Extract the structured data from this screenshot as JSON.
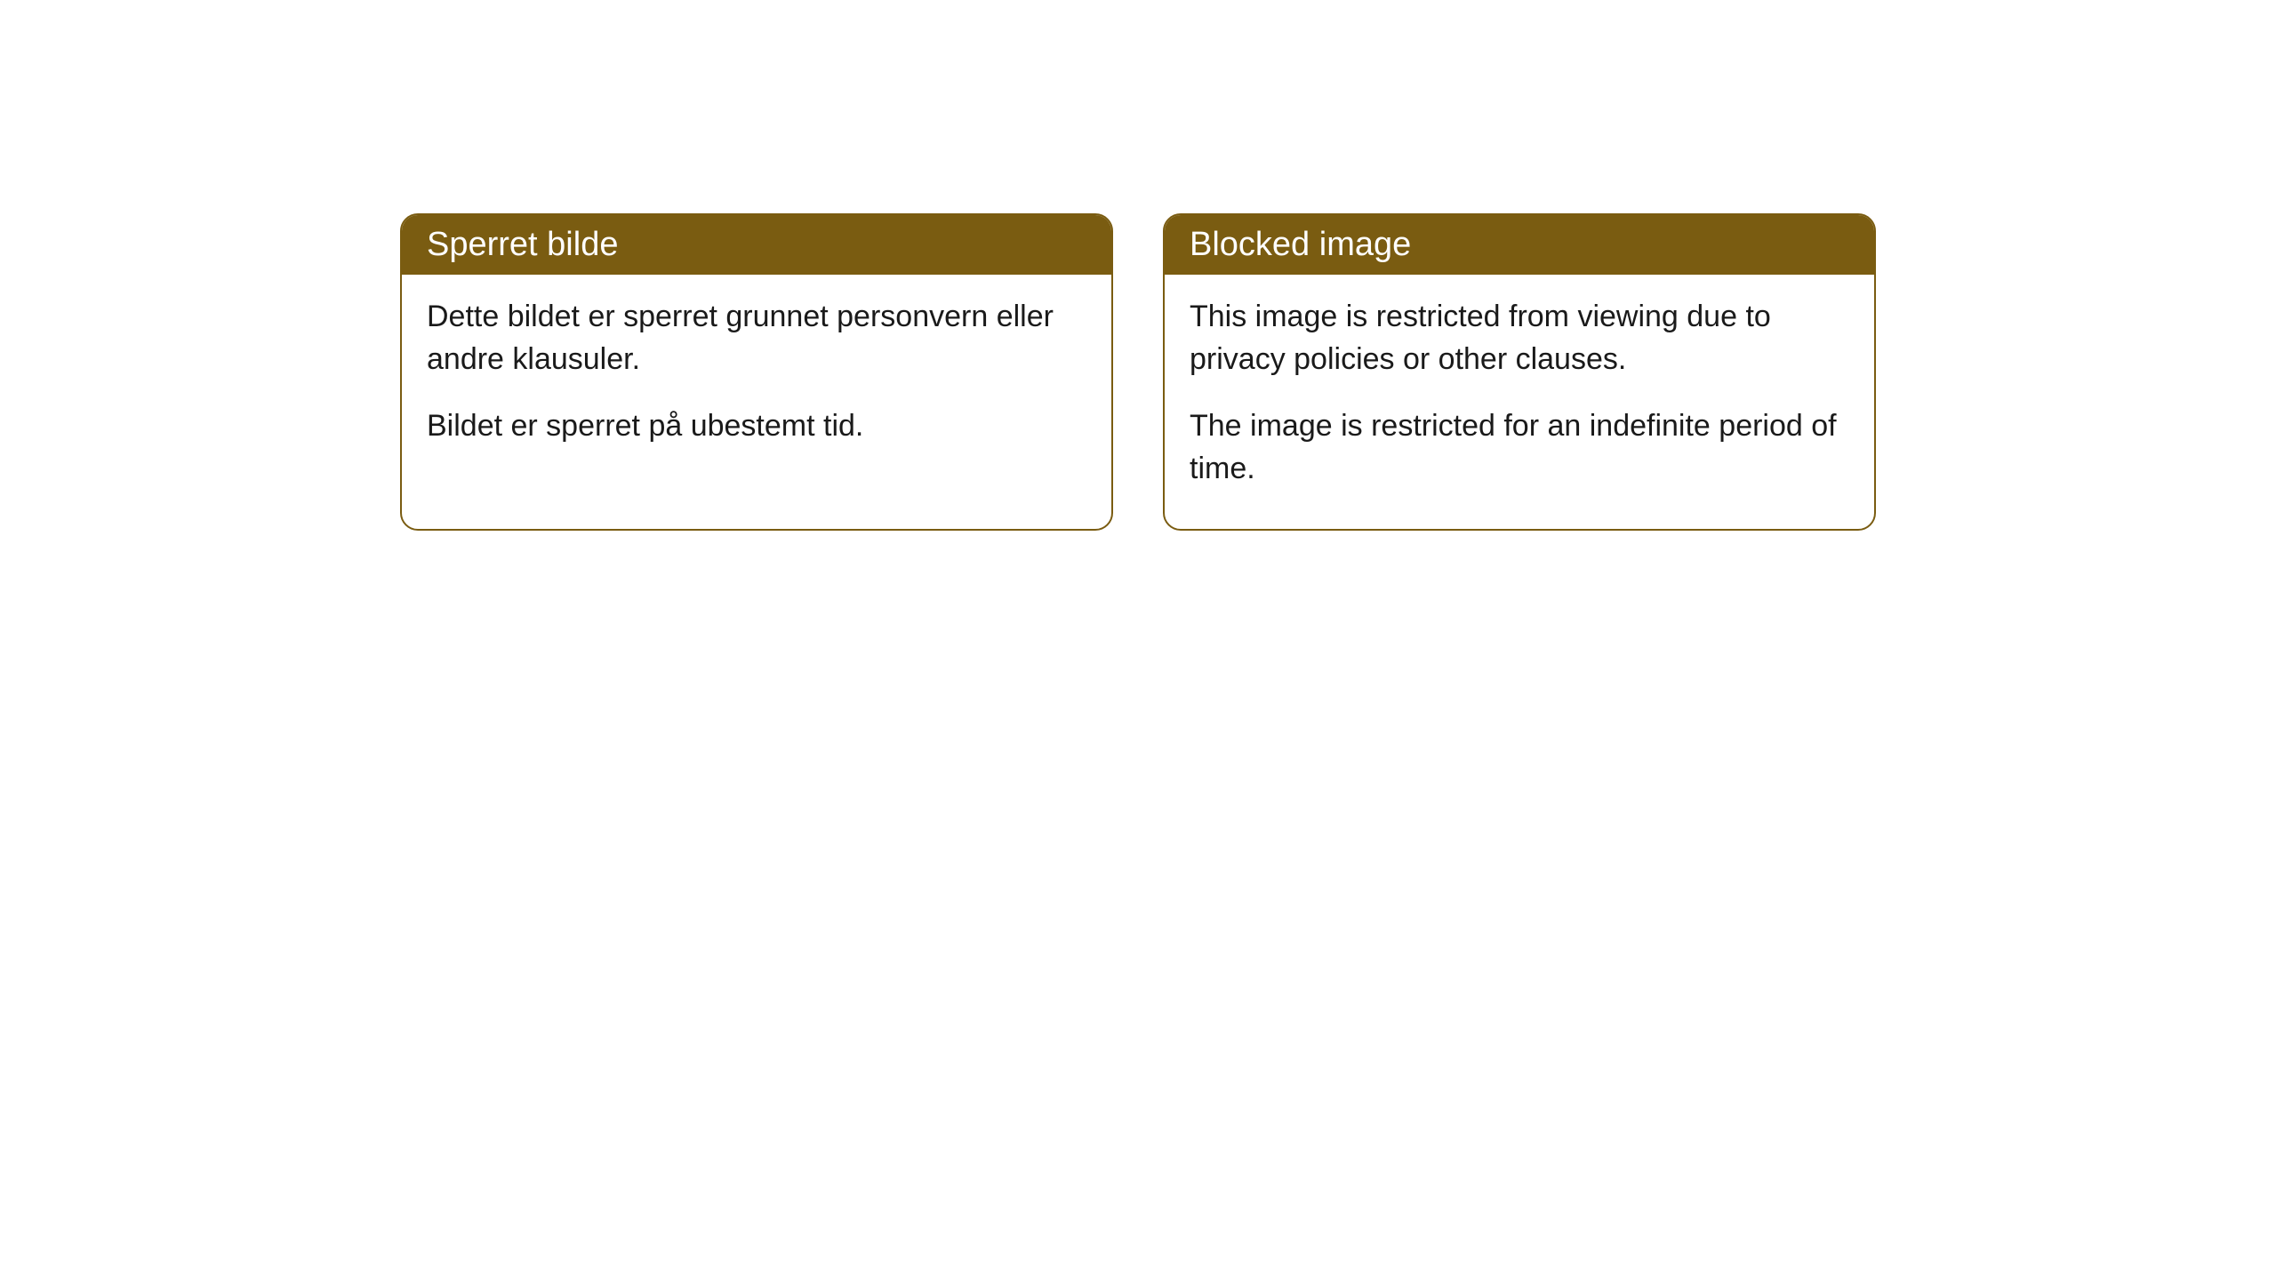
{
  "cards": [
    {
      "title": "Sperret bilde",
      "paragraph1": "Dette bildet er sperret grunnet personvern eller andre klausuler.",
      "paragraph2": "Bildet er sperret på ubestemt tid."
    },
    {
      "title": "Blocked image",
      "paragraph1": "This image is restricted from viewing due to privacy policies or other clauses.",
      "paragraph2": "The image is restricted for an indefinite period of time."
    }
  ],
  "styling": {
    "header_background_color": "#7a5c11",
    "header_text_color": "#ffffff",
    "border_color": "#7a5c11",
    "body_background_color": "#ffffff",
    "body_text_color": "#1a1a1a",
    "border_radius": 20,
    "title_fontsize": 38,
    "body_fontsize": 34,
    "card_gap": 56,
    "container_padding_top": 240,
    "container_padding_horizontal": 450
  }
}
